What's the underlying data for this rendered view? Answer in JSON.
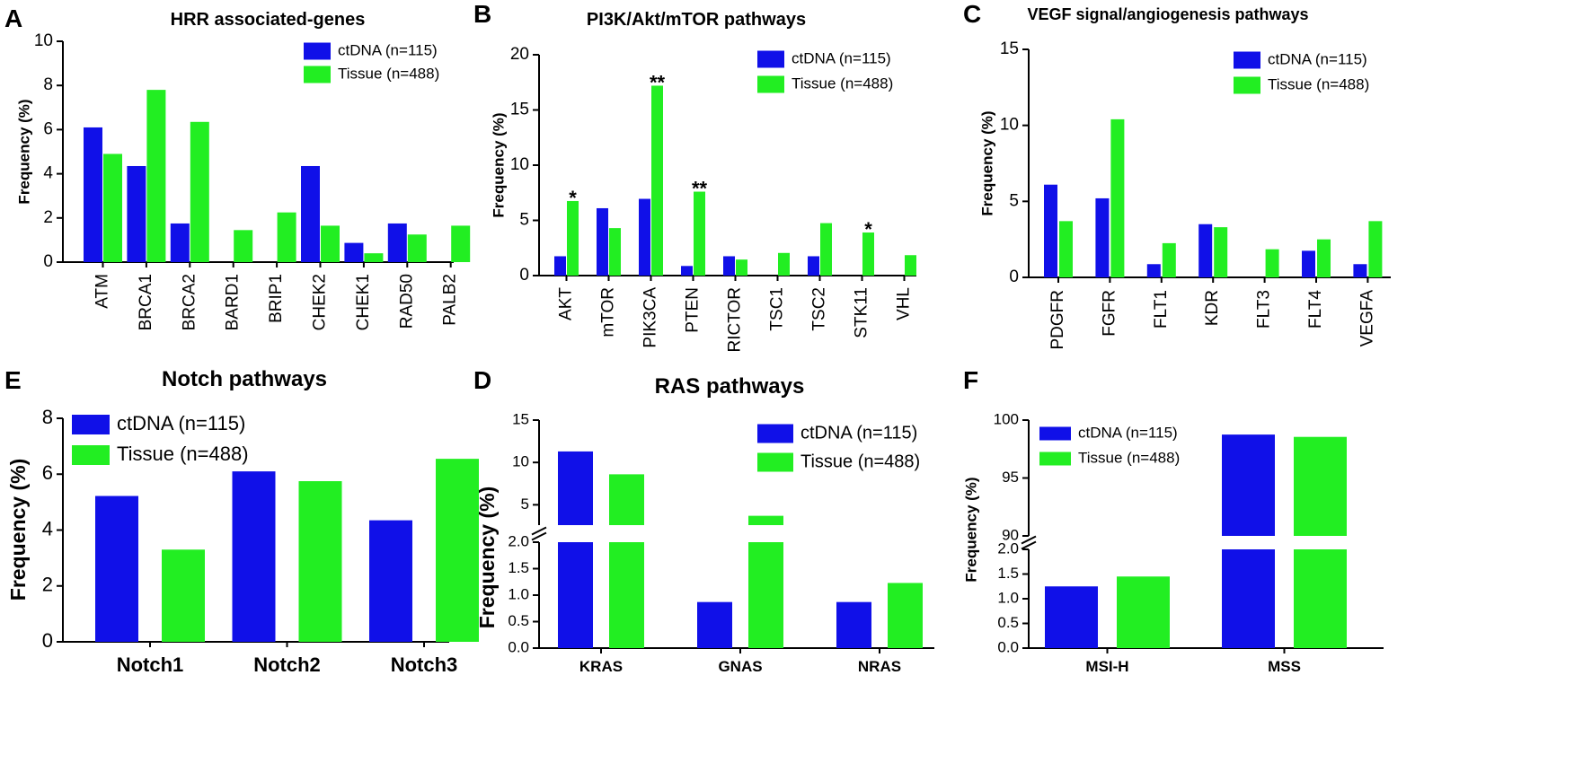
{
  "colors": {
    "ctdna": "#1010e8",
    "tissue": "#22ee22",
    "axis": "#000000"
  },
  "chart_data": [
    {
      "panel": "A",
      "type": "bar",
      "title": "HRR associated-genes",
      "ylabel": "Frequency (%)",
      "xlabel": "",
      "ylim": [
        0,
        10
      ],
      "yticks": [
        "0",
        "2",
        "4",
        "6",
        "8",
        "10"
      ],
      "categories": [
        "ATM",
        "BRCA1",
        "BRCA2",
        "BARD1",
        "BRIP1",
        "CHEK2",
        "CHEK1",
        "RAD50",
        "PALB2"
      ],
      "series": [
        {
          "name": "ctDNA (n=115)",
          "values": [
            6.1,
            4.35,
            1.75,
            0,
            0,
            4.35,
            0.87,
            1.75,
            0
          ]
        },
        {
          "name": "Tissue (n=488)",
          "values": [
            4.9,
            7.8,
            6.35,
            1.45,
            2.25,
            1.65,
            0.4,
            1.25,
            1.65
          ]
        }
      ],
      "annotations": [],
      "legend": "top-right"
    },
    {
      "panel": "B",
      "type": "bar",
      "title": "PI3K/Akt/mTOR pathways",
      "ylabel": "Frequency (%)",
      "xlabel": "",
      "ylim": [
        0,
        20
      ],
      "yticks": [
        "0",
        "5",
        "10",
        "15",
        "20"
      ],
      "categories": [
        "AKT",
        "mTOR",
        "PIK3CA",
        "PTEN",
        "RICTOR",
        "TSC1",
        "TSC2",
        "STK11",
        "VHL"
      ],
      "series": [
        {
          "name": "ctDNA (n=115)",
          "values": [
            1.75,
            6.1,
            6.95,
            0.87,
            1.75,
            0,
            1.75,
            0,
            0
          ]
        },
        {
          "name": "Tissue (n=488)",
          "values": [
            6.75,
            4.3,
            17.2,
            7.6,
            1.45,
            2.05,
            4.75,
            3.9,
            1.85
          ]
        }
      ],
      "annotations": [
        {
          "category": "AKT",
          "text": "*"
        },
        {
          "category": "PIK3CA",
          "text": "**"
        },
        {
          "category": "PTEN",
          "text": "**"
        },
        {
          "category": "STK11",
          "text": "*"
        }
      ],
      "legend": "top-right"
    },
    {
      "panel": "C",
      "type": "bar",
      "title": "VEGF signal/angiogenesis pathways",
      "ylabel": "Frequency (%)",
      "xlabel": "",
      "ylim": [
        0,
        15
      ],
      "yticks": [
        "0",
        "5",
        "10",
        "15"
      ],
      "categories": [
        "PDGFR",
        "FGFR",
        "FLT1",
        "KDR",
        "FLT3",
        "FLT4",
        "VEGFA"
      ],
      "series": [
        {
          "name": "ctDNA (n=115)",
          "values": [
            6.1,
            5.2,
            0.87,
            3.5,
            0,
            1.75,
            0.87
          ]
        },
        {
          "name": "Tissue (n=488)",
          "values": [
            3.7,
            10.4,
            2.25,
            3.3,
            1.85,
            2.5,
            3.7
          ]
        }
      ],
      "annotations": [],
      "legend": "top-right"
    },
    {
      "panel": "E",
      "type": "bar",
      "title": "Notch pathways",
      "ylabel": "Frequency (%)",
      "xlabel": "",
      "ylim": [
        0,
        8
      ],
      "yticks": [
        "0",
        "2",
        "4",
        "6",
        "8"
      ],
      "categories": [
        "Notch1",
        "Notch2",
        "Notch3"
      ],
      "series": [
        {
          "name": "ctDNA (n=115)",
          "values": [
            5.22,
            6.1,
            4.35
          ]
        },
        {
          "name": "Tissue (n=488)",
          "values": [
            3.3,
            5.75,
            6.55
          ]
        }
      ],
      "annotations": [],
      "legend": "top-left"
    },
    {
      "panel": "D",
      "type": "bar",
      "title": "RAS pathways",
      "ylabel": "Frequency (%)",
      "xlabel": "",
      "broken_axis": true,
      "ylim": [
        0,
        15
      ],
      "lower_range": [
        0,
        2
      ],
      "upper_range": [
        2.6,
        15
      ],
      "yticks_lower": [
        "0.0",
        "0.5",
        "1.0",
        "1.5",
        "2.0"
      ],
      "yticks_upper": [
        "5",
        "10",
        "15"
      ],
      "categories": [
        "KRAS",
        "GNAS",
        "NRAS"
      ],
      "series": [
        {
          "name": "ctDNA (n=115)",
          "values": [
            11.3,
            0.87,
            0.87
          ]
        },
        {
          "name": "Tissue (n=488)",
          "values": [
            8.6,
            3.7,
            1.23
          ]
        }
      ],
      "annotations": [],
      "legend": "top-right"
    },
    {
      "panel": "F",
      "type": "bar",
      "title": "",
      "ylabel": "Frequency (%)",
      "xlabel": "",
      "broken_axis": true,
      "ylim": [
        0,
        100
      ],
      "lower_range": [
        0,
        2
      ],
      "upper_range": [
        90,
        100
      ],
      "yticks_lower": [
        "0.0",
        "0.5",
        "1.0",
        "1.5",
        "2.0"
      ],
      "yticks_upper": [
        "90",
        "95",
        "100"
      ],
      "categories": [
        "MSI-H",
        "MSS"
      ],
      "series": [
        {
          "name": "ctDNA (n=115)",
          "values": [
            1.25,
            98.75
          ]
        },
        {
          "name": "Tissue (n=488)",
          "values": [
            1.45,
            98.55
          ]
        }
      ],
      "annotations": [],
      "legend": "top-left"
    }
  ]
}
